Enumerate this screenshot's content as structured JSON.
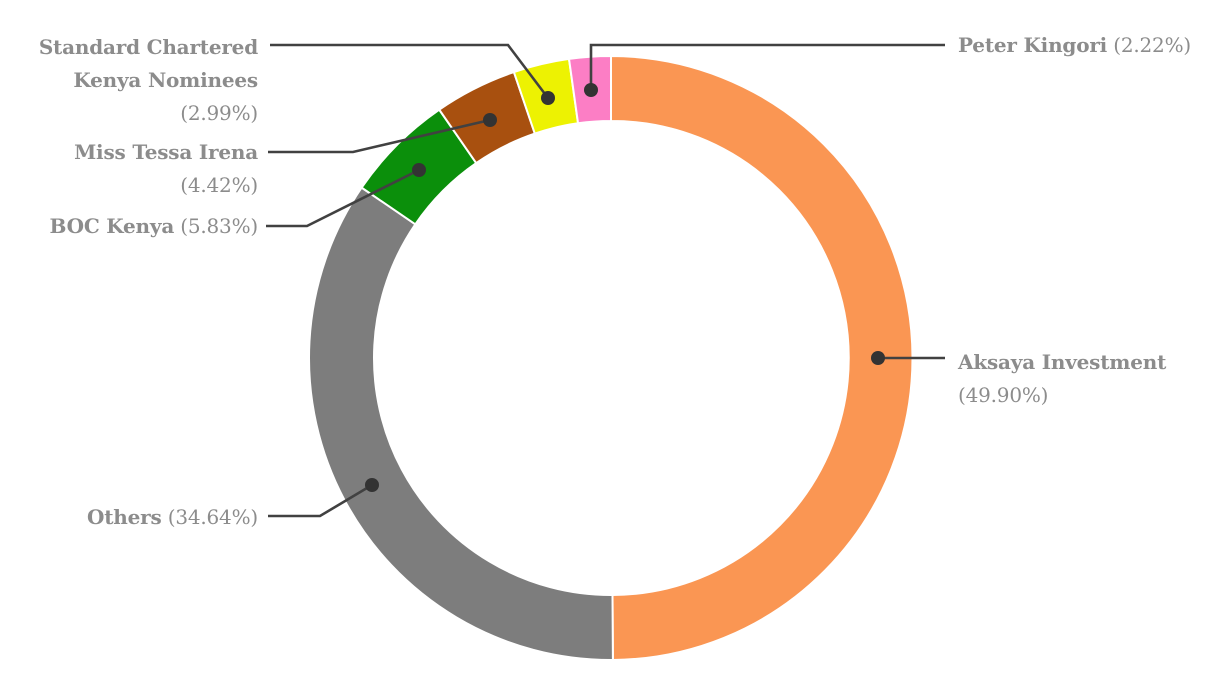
{
  "chart_data": {
    "type": "pie",
    "subtype": "donut",
    "title": "",
    "unit": "%",
    "total": 100,
    "start_angle_deg": 0,
    "direction": "clockwise",
    "legend": "none (callout labels with leader lines)",
    "slices": [
      {
        "id": "aksaya-investment",
        "name": "Aksaya Investment",
        "value": 49.9,
        "pct_label": "(49.90%)",
        "color": "#FA9653",
        "label_lines": [
          {
            "bold": "Aksaya Investment"
          },
          {
            "regular": "(49.90%)"
          }
        ]
      },
      {
        "id": "others",
        "name": "Others",
        "value": 34.64,
        "pct_label": "(34.64%)",
        "color": "#7D7D7D",
        "label_lines": [
          {
            "bold": "Others",
            "regular": "(34.64%)"
          }
        ]
      },
      {
        "id": "boc-kenya",
        "name": "BOC Kenya",
        "value": 5.83,
        "pct_label": "(5.83%)",
        "color": "#0B8F0B",
        "label_lines": [
          {
            "bold": "BOC Kenya",
            "regular": "(5.83%)"
          }
        ]
      },
      {
        "id": "miss-tessa-irena",
        "name": "Miss Tessa Irena",
        "value": 4.42,
        "pct_label": "(4.42%)",
        "color": "#A8500F",
        "label_lines": [
          {
            "bold": "Miss Tessa Irena"
          },
          {
            "regular": "(4.42%)"
          }
        ]
      },
      {
        "id": "standard-chartered-kenya-nominees",
        "name": "Standard Chartered Kenya Nominees",
        "value": 2.99,
        "pct_label": "(2.99%)",
        "color": "#EDF202",
        "label_lines": [
          {
            "bold": "Standard Chartered"
          },
          {
            "bold": "Kenya Nominees"
          },
          {
            "regular": "(2.99%)"
          }
        ]
      },
      {
        "id": "peter-kingori",
        "name": "Peter Kingori",
        "value": 2.22,
        "pct_label": "(2.22%)",
        "color": "#FC7EC5",
        "label_lines": [
          {
            "bold": "Peter Kingori",
            "regular": "(2.22%)"
          }
        ]
      }
    ],
    "style": {
      "background": "#FFFFFF",
      "text_color": "#8C8C8C",
      "leader_color": "#414141",
      "dot_color": "#333333",
      "segment_gap_color": "#FFFFFF"
    }
  }
}
